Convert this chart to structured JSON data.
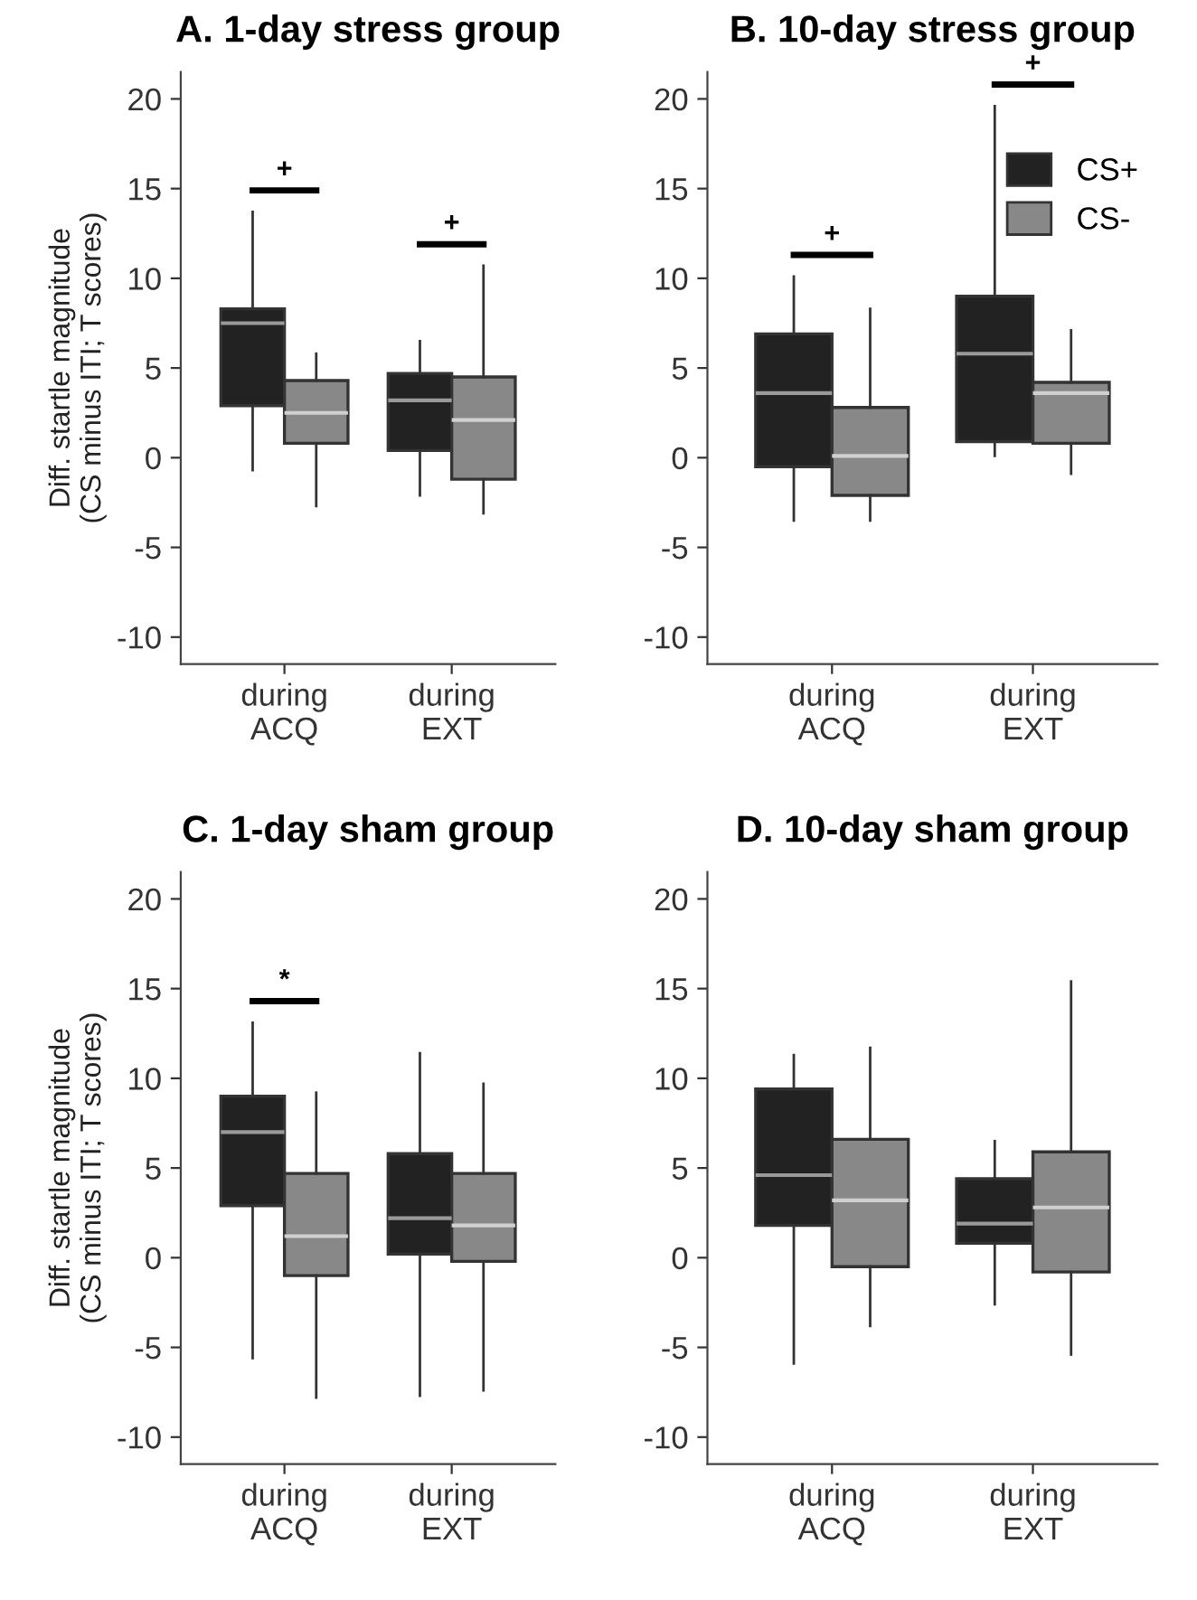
{
  "chart_data": [
    {
      "type": "box",
      "title": "A. 1-day stress group",
      "ylabel": "Diff. startle magnitude\n(CS minus ITI; T scores)",
      "categories": [
        "during\nACQ",
        "during\nEXT"
      ],
      "ylim": [
        -11.5,
        21.5
      ],
      "yticks": [
        -10,
        -5,
        0,
        5,
        10,
        15,
        20
      ],
      "grid": false,
      "legend": false,
      "series": [
        {
          "color": "#222222",
          "boxes": [
            {
              "low": -0.7,
              "q1": 2.9,
              "median": 7.5,
              "q3": 8.3,
              "high": 13.7
            },
            {
              "low": -2.1,
              "q1": 0.4,
              "median": 3.2,
              "q3": 4.7,
              "high": 6.5
            }
          ]
        },
        {
          "color": "#888888",
          "boxes": [
            {
              "low": -2.7,
              "q1": 0.8,
              "median": 2.5,
              "q3": 4.3,
              "high": 5.8
            },
            {
              "low": -3.1,
              "q1": -1.2,
              "median": 2.1,
              "q3": 4.5,
              "high": 10.7
            }
          ]
        }
      ],
      "annotations": [
        "+",
        "+"
      ]
    },
    {
      "type": "box",
      "title": "B. 10-day stress group",
      "categories": [
        "during\nACQ",
        "during\nEXT"
      ],
      "ylim": [
        -11.5,
        21.5
      ],
      "yticks": [
        -10,
        -5,
        0,
        5,
        10,
        15,
        20
      ],
      "grid": false,
      "legend": "top right",
      "series": [
        {
          "name": "CS+",
          "color": "#222222",
          "boxes": [
            {
              "low": -3.5,
              "q1": -0.5,
              "median": 3.6,
              "q3": 6.9,
              "high": 10.1
            },
            {
              "low": 0.1,
              "q1": 0.9,
              "median": 5.8,
              "q3": 9.0,
              "high": 19.6
            }
          ]
        },
        {
          "name": "CS-",
          "color": "#888888",
          "boxes": [
            {
              "low": -3.5,
              "q1": -2.1,
              "median": 0.1,
              "q3": 2.8,
              "high": 8.3
            },
            {
              "low": -0.9,
              "q1": 0.8,
              "median": 3.6,
              "q3": 4.2,
              "high": 7.1
            }
          ]
        }
      ],
      "annotations": [
        "+",
        "+"
      ]
    },
    {
      "type": "box",
      "title": "C. 1-day sham group",
      "ylabel": "Diff. startle magnitude\n(CS minus ITI; T scores)",
      "categories": [
        "during\nACQ",
        "during\nEXT"
      ],
      "ylim": [
        -11.5,
        21.5
      ],
      "yticks": [
        -10,
        -5,
        0,
        5,
        10,
        15,
        20
      ],
      "grid": false,
      "legend": false,
      "series": [
        {
          "color": "#222222",
          "boxes": [
            {
              "low": -5.6,
              "q1": 2.9,
              "median": 7.0,
              "q3": 9.0,
              "high": 13.1
            },
            {
              "low": -7.7,
              "q1": 0.2,
              "median": 2.2,
              "q3": 5.8,
              "high": 11.4
            }
          ]
        },
        {
          "color": "#888888",
          "boxes": [
            {
              "low": -7.8,
              "q1": -1.0,
              "median": 1.2,
              "q3": 4.7,
              "high": 9.2
            },
            {
              "low": -7.4,
              "q1": -0.2,
              "median": 1.8,
              "q3": 4.7,
              "high": 9.7
            }
          ]
        }
      ],
      "annotations": [
        "*"
      ]
    },
    {
      "type": "box",
      "title": "D. 10-day sham group",
      "categories": [
        "during\nACQ",
        "during\nEXT"
      ],
      "ylim": [
        -11.5,
        21.5
      ],
      "yticks": [
        -10,
        -5,
        0,
        5,
        10,
        15,
        20
      ],
      "grid": false,
      "legend": false,
      "series": [
        {
          "color": "#222222",
          "boxes": [
            {
              "low": -5.9,
              "q1": 1.8,
              "median": 4.6,
              "q3": 9.4,
              "high": 11.3
            },
            {
              "low": -2.6,
              "q1": 0.8,
              "median": 1.9,
              "q3": 4.4,
              "high": 6.5
            }
          ]
        },
        {
          "color": "#888888",
          "boxes": [
            {
              "low": -3.8,
              "q1": -0.5,
              "median": 3.2,
              "q3": 6.6,
              "high": 11.7
            },
            {
              "low": -5.4,
              "q1": -0.8,
              "median": 2.8,
              "q3": 5.9,
              "high": 15.4
            }
          ]
        }
      ]
    }
  ]
}
